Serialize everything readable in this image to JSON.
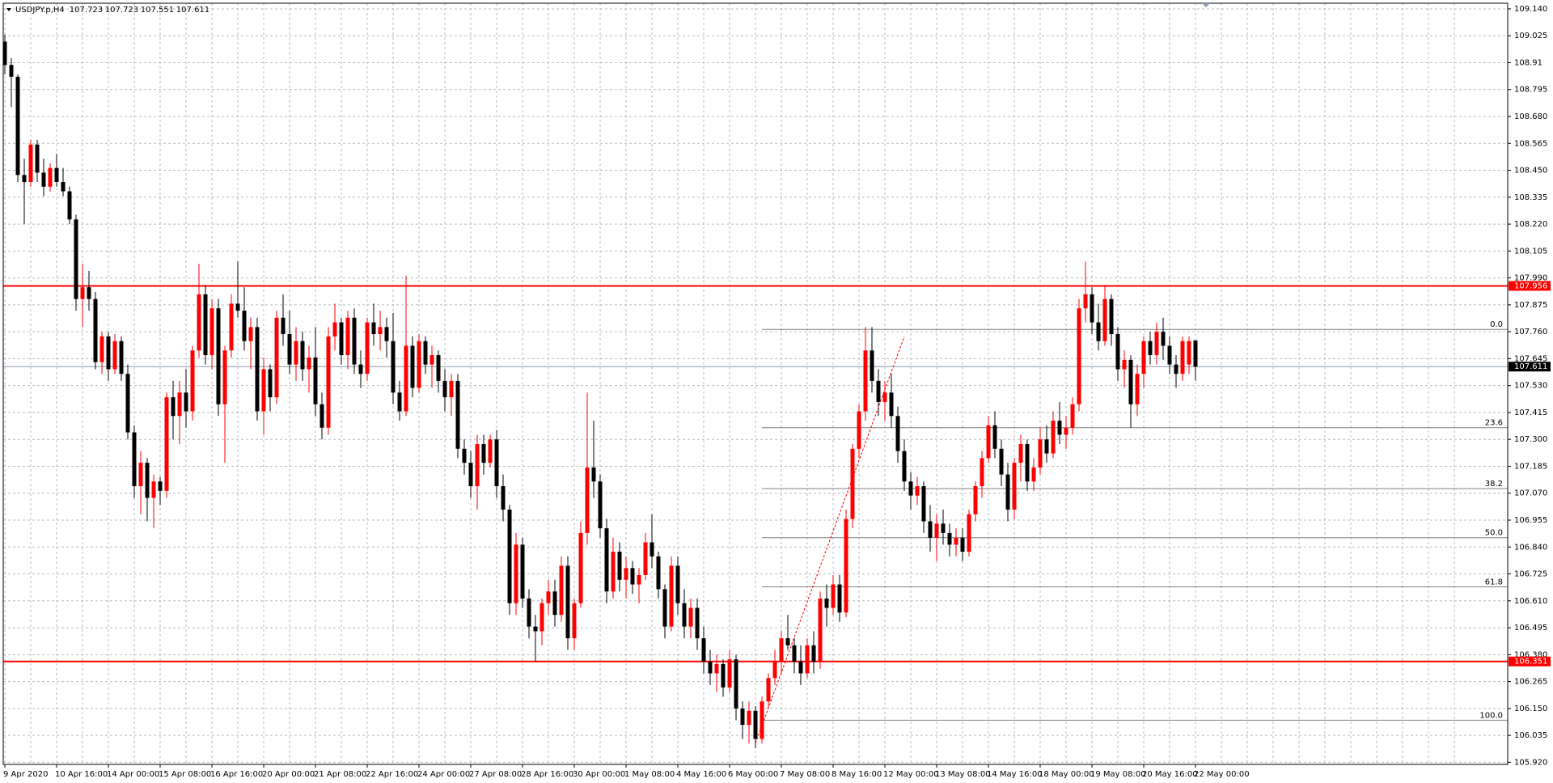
{
  "chart_data": {
    "type": "candlestick",
    "title": "USDJPY.p,H4",
    "ylim": [
      105.911,
      109.164
    ],
    "yticks": [
      {
        "value": 109.14,
        "label": "109.140"
      },
      109.025,
      108.91,
      108.795,
      {
        "value": 108.68,
        "label": "108.680"
      },
      108.565,
      {
        "value": 108.45,
        "label": "108.450"
      },
      108.335,
      {
        "value": 108.22,
        "label": "108.220"
      },
      108.105,
      {
        "value": 107.99,
        "label": "107.990"
      },
      107.875,
      {
        "value": 107.76,
        "label": "107.760"
      },
      107.645,
      {
        "value": 107.53,
        "label": "107.530"
      },
      107.415,
      {
        "value": 107.3,
        "label": "107.300"
      },
      107.185,
      {
        "value": 107.07,
        "label": "107.070"
      },
      106.955,
      {
        "value": 106.84,
        "label": "106.840"
      },
      106.725,
      {
        "value": 106.61,
        "label": "106.610"
      },
      106.495,
      {
        "value": 106.38,
        "label": "106.380"
      },
      106.265,
      {
        "value": 106.15,
        "label": "106.150"
      },
      106.035,
      {
        "value": 105.92,
        "label": "105.920"
      }
    ],
    "xticks": [
      "9 Apr 2020",
      "10 Apr 16:00",
      "14 Apr 00:00",
      "15 Apr 08:00",
      "16 Apr 16:00",
      "20 Apr 00:00",
      "21 Apr 08:00",
      "22 Apr 16:00",
      "24 Apr 00:00",
      "27 Apr 08:00",
      "28 Apr 16:00",
      "30 Apr 00:00",
      "1 May 08:00",
      "4 May 16:00",
      "6 May 00:00",
      "7 May 08:00",
      "8 May 16:00",
      "12 May 00:00",
      "13 May 08:00",
      "14 May 16:00",
      "18 May 00:00",
      "19 May 08:00",
      "20 May 16:00",
      "22 May 00:00"
    ],
    "grid": true,
    "up_color": "#ff0000",
    "down_color": "#000000",
    "levels": [
      {
        "price": 107.956,
        "color": "#ff0000",
        "box": "#ff0000"
      },
      {
        "price": 106.351,
        "color": "#ff0000",
        "box": "#ff0000"
      },
      {
        "price": 107.611,
        "color": "#8899aa",
        "box": "#000000"
      }
    ],
    "fibo": [
      {
        "label": "0.0",
        "price": 107.77
      },
      {
        "label": "23.6",
        "price": 107.35
      },
      {
        "label": "38.2",
        "price": 107.09
      },
      {
        "label": "50.0",
        "price": 106.88
      },
      {
        "label": "61.8",
        "price": 106.67
      },
      {
        "label": "100.0",
        "price": 106.1
      }
    ],
    "candles": [
      [
        109.0,
        109.03,
        108.86,
        108.9
      ],
      [
        108.9,
        108.93,
        108.72,
        108.85
      ],
      [
        108.85,
        108.86,
        108.4,
        108.43
      ],
      [
        108.43,
        108.5,
        108.22,
        108.4
      ],
      [
        108.4,
        108.58,
        108.38,
        108.56
      ],
      [
        108.56,
        108.58,
        108.4,
        108.44
      ],
      [
        108.44,
        108.5,
        108.34,
        108.38
      ],
      [
        108.38,
        108.48,
        108.36,
        108.46
      ],
      [
        108.46,
        108.52,
        108.38,
        108.4
      ],
      [
        108.4,
        108.46,
        108.34,
        108.36
      ],
      [
        108.36,
        108.38,
        108.22,
        108.24
      ],
      [
        108.24,
        108.26,
        107.85,
        107.9
      ],
      [
        107.9,
        108.05,
        107.78,
        107.95
      ],
      [
        107.95,
        108.02,
        107.85,
        107.9
      ],
      [
        107.9,
        107.93,
        107.6,
        107.63
      ],
      [
        107.63,
        107.76,
        107.58,
        107.74
      ],
      [
        107.74,
        107.76,
        107.55,
        107.6
      ],
      [
        107.6,
        107.75,
        107.58,
        107.72
      ],
      [
        107.72,
        107.74,
        107.55,
        107.58
      ],
      [
        107.58,
        107.62,
        107.3,
        107.33
      ],
      [
        107.33,
        107.36,
        107.05,
        107.1
      ],
      [
        107.1,
        107.25,
        106.98,
        107.2
      ],
      [
        107.2,
        107.22,
        106.95,
        107.05
      ],
      [
        107.05,
        107.15,
        106.92,
        107.12
      ],
      [
        107.12,
        107.14,
        107.02,
        107.08
      ],
      [
        107.08,
        107.5,
        107.05,
        107.48
      ],
      [
        107.48,
        107.55,
        107.3,
        107.4
      ],
      [
        107.4,
        107.55,
        107.28,
        107.5
      ],
      [
        107.5,
        107.6,
        107.35,
        107.42
      ],
      [
        107.42,
        107.7,
        107.38,
        107.68
      ],
      [
        107.68,
        108.05,
        107.65,
        107.92
      ],
      [
        107.92,
        107.96,
        107.62,
        107.66
      ],
      [
        107.66,
        107.9,
        107.6,
        107.86
      ],
      [
        107.86,
        107.9,
        107.4,
        107.45
      ],
      [
        107.45,
        107.7,
        107.2,
        107.68
      ],
      [
        107.68,
        107.92,
        107.65,
        107.88
      ],
      [
        107.88,
        108.06,
        107.82,
        107.85
      ],
      [
        107.85,
        107.95,
        107.68,
        107.72
      ],
      [
        107.72,
        107.82,
        107.6,
        107.78
      ],
      [
        107.78,
        107.82,
        107.38,
        107.42
      ],
      [
        107.42,
        107.65,
        107.32,
        107.6
      ],
      [
        107.6,
        107.62,
        107.42,
        107.48
      ],
      [
        107.48,
        107.85,
        107.45,
        107.82
      ],
      [
        107.82,
        107.92,
        107.7,
        107.75
      ],
      [
        107.75,
        107.85,
        107.58,
        107.62
      ],
      [
        107.62,
        107.78,
        107.55,
        107.72
      ],
      [
        107.72,
        107.76,
        107.55,
        107.6
      ],
      [
        107.6,
        107.7,
        107.5,
        107.65
      ],
      [
        107.65,
        107.78,
        107.4,
        107.45
      ],
      [
        107.45,
        107.5,
        107.3,
        107.35
      ],
      [
        107.35,
        107.78,
        107.32,
        107.74
      ],
      [
        107.74,
        107.88,
        107.68,
        107.8
      ],
      [
        107.8,
        107.82,
        107.62,
        107.66
      ],
      [
        107.66,
        107.85,
        107.6,
        107.82
      ],
      [
        107.82,
        107.86,
        107.58,
        107.62
      ],
      [
        107.62,
        107.68,
        107.52,
        107.58
      ],
      [
        107.58,
        107.82,
        107.55,
        107.8
      ],
      [
        107.8,
        107.88,
        107.7,
        107.75
      ],
      [
        107.75,
        107.85,
        107.68,
        107.78
      ],
      [
        107.78,
        107.82,
        107.65,
        107.72
      ],
      [
        107.72,
        107.84,
        107.45,
        107.5
      ],
      [
        107.5,
        107.55,
        107.38,
        107.42
      ],
      [
        107.42,
        108.0,
        107.4,
        107.7
      ],
      [
        107.7,
        107.74,
        107.48,
        107.52
      ],
      [
        107.52,
        107.75,
        107.5,
        107.72
      ],
      [
        107.72,
        107.74,
        107.58,
        107.62
      ],
      [
        107.62,
        107.7,
        107.52,
        107.66
      ],
      [
        107.66,
        107.68,
        107.5,
        107.55
      ],
      [
        107.55,
        107.6,
        107.42,
        107.48
      ],
      [
        107.48,
        107.58,
        107.4,
        107.55
      ],
      [
        107.55,
        107.58,
        107.22,
        107.26
      ],
      [
        107.26,
        107.3,
        107.15,
        107.2
      ],
      [
        107.2,
        107.25,
        107.05,
        107.1
      ],
      [
        107.1,
        107.32,
        107.0,
        107.28
      ],
      [
        107.28,
        107.32,
        107.15,
        107.2
      ],
      [
        107.2,
        107.32,
        107.18,
        107.3
      ],
      [
        107.3,
        107.34,
        107.05,
        107.1
      ],
      [
        107.1,
        107.15,
        106.95,
        107.0
      ],
      [
        107.0,
        107.02,
        106.55,
        106.6
      ],
      [
        106.6,
        106.9,
        106.55,
        106.85
      ],
      [
        106.85,
        106.88,
        106.58,
        106.62
      ],
      [
        106.62,
        106.66,
        106.45,
        106.5
      ],
      [
        106.5,
        106.55,
        106.35,
        106.48
      ],
      [
        106.48,
        106.62,
        106.42,
        106.6
      ],
      [
        106.6,
        106.7,
        106.55,
        106.65
      ],
      [
        106.65,
        106.7,
        106.5,
        106.55
      ],
      [
        106.55,
        106.8,
        106.52,
        106.76
      ],
      [
        106.76,
        106.8,
        106.4,
        106.45
      ],
      [
        106.45,
        106.62,
        106.4,
        106.6
      ],
      [
        106.6,
        106.95,
        106.58,
        106.9
      ],
      [
        106.9,
        107.5,
        106.85,
        107.18
      ],
      [
        107.18,
        107.38,
        107.05,
        107.12
      ],
      [
        107.12,
        107.15,
        106.88,
        106.92
      ],
      [
        106.92,
        106.96,
        106.6,
        106.65
      ],
      [
        106.65,
        106.88,
        106.62,
        106.82
      ],
      [
        106.82,
        106.86,
        106.65,
        106.7
      ],
      [
        106.7,
        106.8,
        106.62,
        106.75
      ],
      [
        106.75,
        106.78,
        106.64,
        106.68
      ],
      [
        106.68,
        106.75,
        106.6,
        106.72
      ],
      [
        106.72,
        106.9,
        106.7,
        106.86
      ],
      [
        106.86,
        106.98,
        106.75,
        106.8
      ],
      [
        106.8,
        106.82,
        106.62,
        106.66
      ],
      [
        106.66,
        106.68,
        106.45,
        106.5
      ],
      [
        106.5,
        106.8,
        106.48,
        106.76
      ],
      [
        106.76,
        106.8,
        106.55,
        106.6
      ],
      [
        106.6,
        106.66,
        106.45,
        106.5
      ],
      [
        106.5,
        106.62,
        106.45,
        106.58
      ],
      [
        106.58,
        106.62,
        106.4,
        106.45
      ],
      [
        106.45,
        106.5,
        106.3,
        106.35
      ],
      [
        106.35,
        106.4,
        106.25,
        106.3
      ],
      [
        106.3,
        106.38,
        106.22,
        106.34
      ],
      [
        106.34,
        106.36,
        106.2,
        106.24
      ],
      [
        106.24,
        106.4,
        106.22,
        106.36
      ],
      [
        106.36,
        106.38,
        106.1,
        106.15
      ],
      [
        106.15,
        106.18,
        106.02,
        106.08
      ],
      [
        106.08,
        106.18,
        106.0,
        106.14
      ],
      [
        106.14,
        106.16,
        105.98,
        106.02
      ],
      [
        106.02,
        106.2,
        106.0,
        106.18
      ],
      [
        106.18,
        106.3,
        106.15,
        106.28
      ],
      [
        106.28,
        106.4,
        106.25,
        106.35
      ],
      [
        106.35,
        106.48,
        106.3,
        106.45
      ],
      [
        106.45,
        106.55,
        106.4,
        106.42
      ],
      [
        106.42,
        106.45,
        106.3,
        106.35
      ],
      [
        106.35,
        106.42,
        106.25,
        106.3
      ],
      [
        106.3,
        106.45,
        106.28,
        106.42
      ],
      [
        106.42,
        106.48,
        106.3,
        106.35
      ],
      [
        106.35,
        106.65,
        106.32,
        106.62
      ],
      [
        106.62,
        106.68,
        106.5,
        106.58
      ],
      [
        106.58,
        106.72,
        106.55,
        106.68
      ],
      [
        106.68,
        106.72,
        106.52,
        106.56
      ],
      [
        106.56,
        107.0,
        106.54,
        106.96
      ],
      [
        106.96,
        107.28,
        106.92,
        107.26
      ],
      [
        107.26,
        107.45,
        107.22,
        107.42
      ],
      [
        107.42,
        107.78,
        107.38,
        107.68
      ],
      [
        107.68,
        107.78,
        107.5,
        107.55
      ],
      [
        107.55,
        107.6,
        107.4,
        107.46
      ],
      [
        107.46,
        107.55,
        107.38,
        107.5
      ],
      [
        107.5,
        107.58,
        107.35,
        107.4
      ],
      [
        107.4,
        107.44,
        107.2,
        107.25
      ],
      [
        107.25,
        107.3,
        107.08,
        107.12
      ],
      [
        107.12,
        107.16,
        107.0,
        107.06
      ],
      [
        107.06,
        107.14,
        107.02,
        107.1
      ],
      [
        107.1,
        107.12,
        106.9,
        106.95
      ],
      [
        106.95,
        107.02,
        106.82,
        106.88
      ],
      [
        106.88,
        106.98,
        106.78,
        106.94
      ],
      [
        106.94,
        107.0,
        106.85,
        106.9
      ],
      [
        106.9,
        106.94,
        106.8,
        106.85
      ],
      [
        106.85,
        106.92,
        106.8,
        106.88
      ],
      [
        106.88,
        106.92,
        106.78,
        106.82
      ],
      [
        106.82,
        107.0,
        106.8,
        106.98
      ],
      [
        106.98,
        107.12,
        106.95,
        107.1
      ],
      [
        107.1,
        107.25,
        107.05,
        107.22
      ],
      [
        107.22,
        107.4,
        107.2,
        107.36
      ],
      [
        107.36,
        107.42,
        107.22,
        107.26
      ],
      [
        107.26,
        107.3,
        107.1,
        107.15
      ],
      [
        107.15,
        107.2,
        106.95,
        107.0
      ],
      [
        107.0,
        107.22,
        106.96,
        107.2
      ],
      [
        107.2,
        107.32,
        107.12,
        107.28
      ],
      [
        107.28,
        107.3,
        107.08,
        107.12
      ],
      [
        107.12,
        107.22,
        107.08,
        107.18
      ],
      [
        107.18,
        107.35,
        107.15,
        107.3
      ],
      [
        107.3,
        107.36,
        107.2,
        107.24
      ],
      [
        107.24,
        107.42,
        107.22,
        107.38
      ],
      [
        107.38,
        107.46,
        107.28,
        107.32
      ],
      [
        107.32,
        107.4,
        107.26,
        107.35
      ],
      [
        107.35,
        107.48,
        107.32,
        107.45
      ],
      [
        107.45,
        107.9,
        107.42,
        107.86
      ],
      [
        107.86,
        108.06,
        107.8,
        107.92
      ],
      [
        107.92,
        107.95,
        107.75,
        107.8
      ],
      [
        107.8,
        107.88,
        107.68,
        107.72
      ],
      [
        107.72,
        107.96,
        107.7,
        107.9
      ],
      [
        107.9,
        107.92,
        107.7,
        107.75
      ],
      [
        107.75,
        107.78,
        107.55,
        107.6
      ],
      [
        107.6,
        107.68,
        107.52,
        107.64
      ],
      [
        107.64,
        107.66,
        107.35,
        107.45
      ],
      [
        107.45,
        107.62,
        107.4,
        107.58
      ],
      [
        107.58,
        107.74,
        107.52,
        107.72
      ],
      [
        107.72,
        107.76,
        107.62,
        107.66
      ],
      [
        107.66,
        107.8,
        107.62,
        107.76
      ],
      [
        107.76,
        107.82,
        107.64,
        107.7
      ],
      [
        107.7,
        107.74,
        107.58,
        107.62
      ],
      [
        107.62,
        107.66,
        107.52,
        107.58
      ],
      [
        107.58,
        107.74,
        107.55,
        107.72
      ],
      [
        107.62,
        107.74,
        107.58,
        107.72
      ],
      [
        107.723,
        107.723,
        107.551,
        107.611
      ]
    ]
  }
}
